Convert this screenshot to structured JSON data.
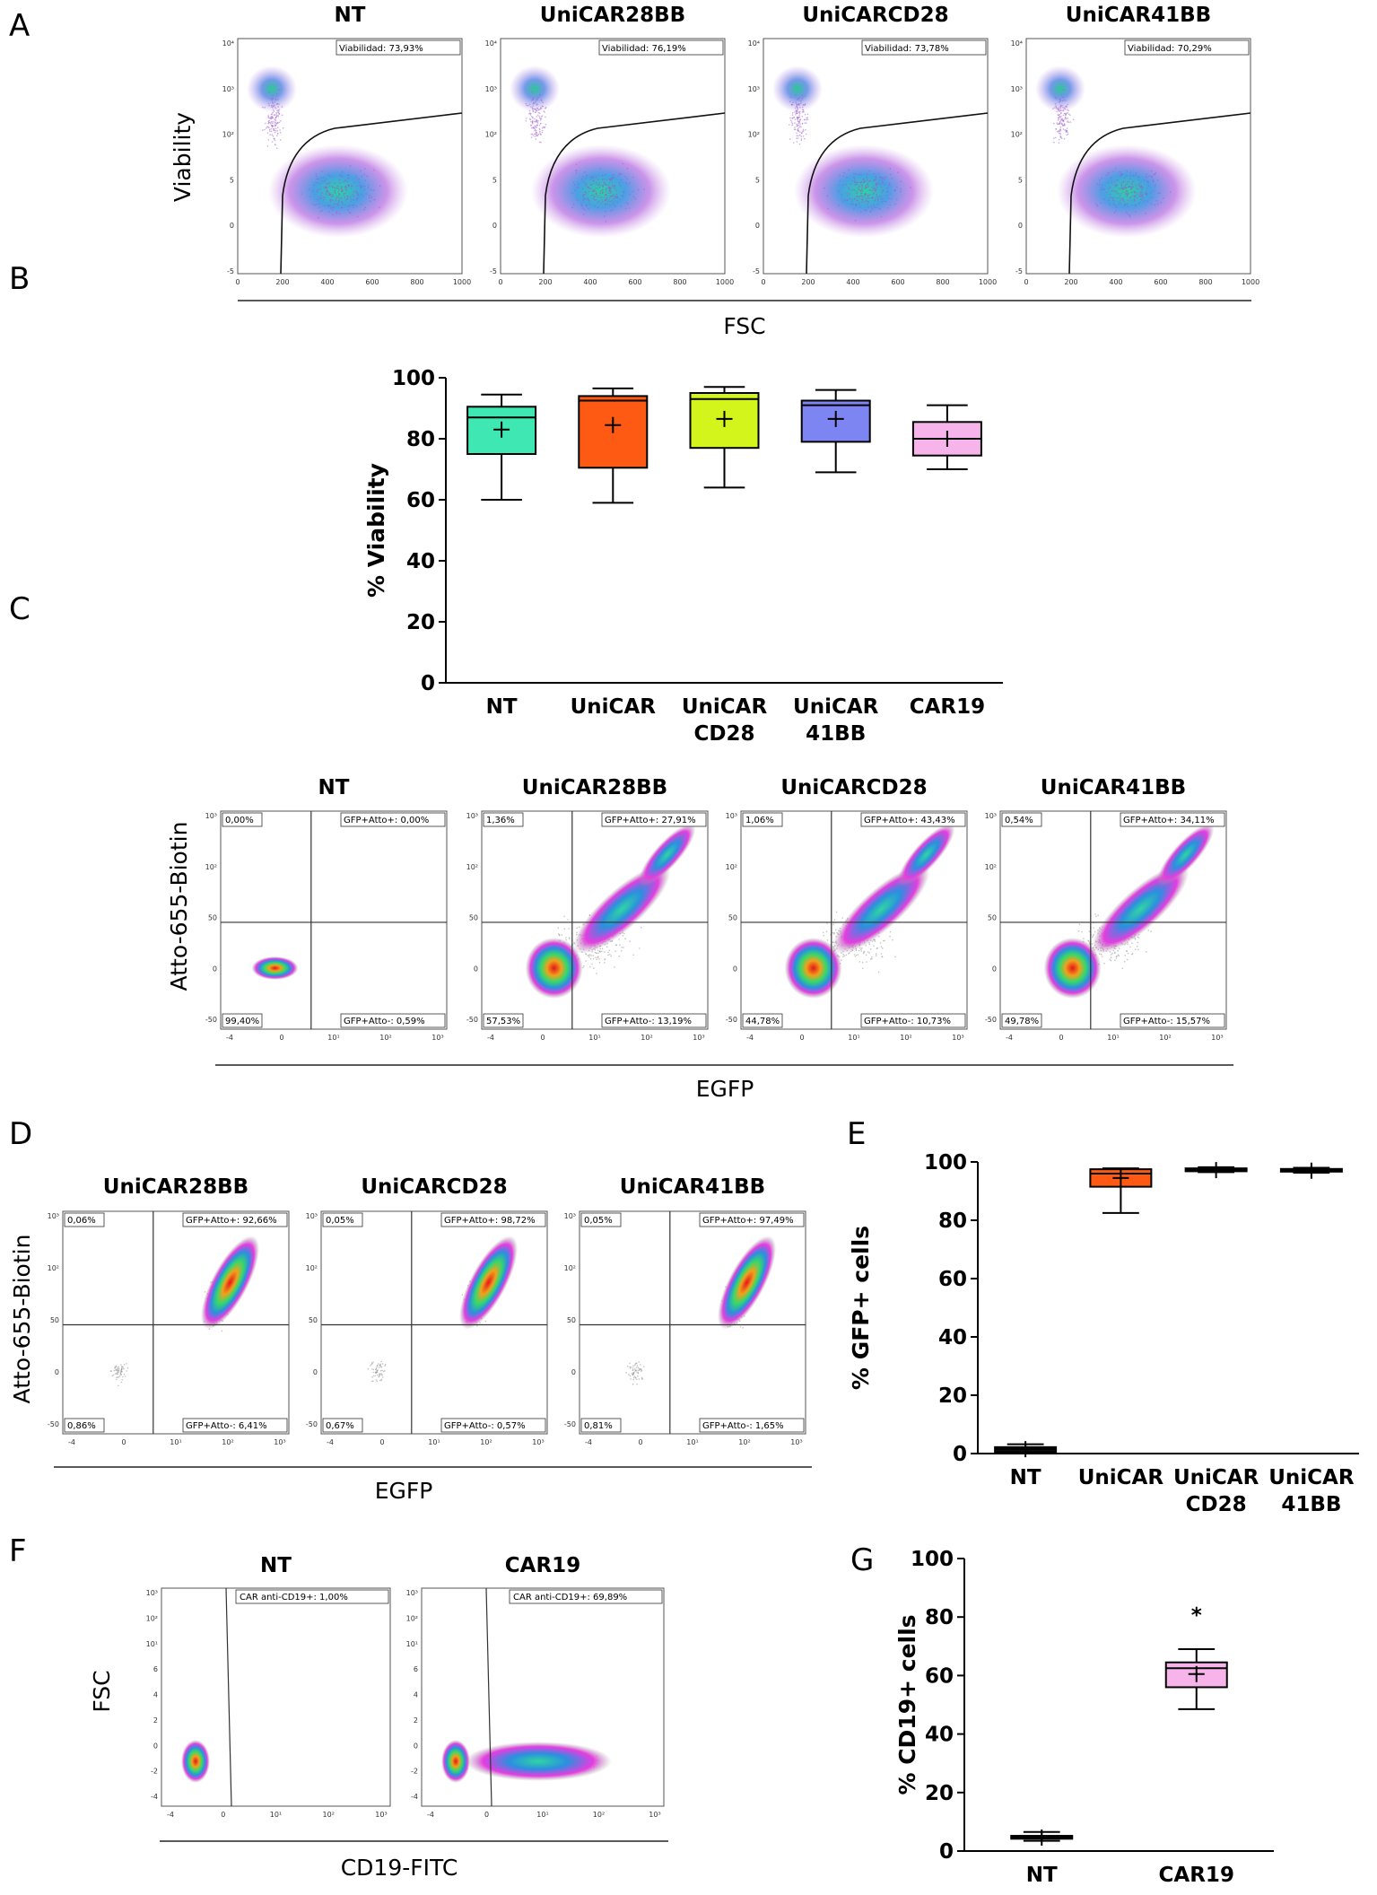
{
  "panel_labels": [
    "A",
    "B",
    "C",
    "D",
    "E",
    "F",
    "G"
  ],
  "panel_a": {
    "titles": [
      "NT",
      "UniCAR28BB",
      "UniCARCD28",
      "UniCAR41BB"
    ],
    "gate_labels": [
      "Viabilidad: 73,93%",
      "Viabilidad: 76,19%",
      "Viabilidad: 73,78%",
      "Viabilidad: 70,29%"
    ],
    "ylabel": "Viability",
    "xlabel": "FSC",
    "x_ticks": [
      "0",
      "200",
      "400",
      "600",
      "800",
      "1000"
    ],
    "y_ticks": [
      "10⁴",
      "10³",
      "10²",
      "5",
      "0",
      "-5"
    ]
  },
  "panel_c": {
    "titles": [
      "NT",
      "UniCAR28BB",
      "UniCARCD28",
      "UniCAR41BB"
    ],
    "ylabel": "Atto-655-Biotin",
    "xlabel": "EGFP",
    "quadrants": [
      {
        "ul": "0,00%",
        "ur": "GFP+Atto+: 0,00%",
        "ll": "99,40%",
        "lr": "GFP+Atto-: 0,59%"
      },
      {
        "ul": "1,36%",
        "ur": "GFP+Atto+: 27,91%",
        "ll": "57,53%",
        "lr": "GFP+Atto-: 13,19%"
      },
      {
        "ul": "1,06%",
        "ur": "GFP+Atto+: 43,43%",
        "ll": "44,78%",
        "lr": "GFP+Atto-: 10,73%"
      },
      {
        "ul": "0,54%",
        "ur": "GFP+Atto+: 34,11%",
        "ll": "49,78%",
        "lr": "GFP+Atto-: 15,57%"
      }
    ],
    "x_ticks": [
      "-4",
      "0",
      "10¹",
      "10²",
      "10³"
    ],
    "y_ticks": [
      "10³",
      "10²",
      "50",
      "0",
      "-50"
    ]
  },
  "panel_d": {
    "titles": [
      "UniCAR28BB",
      "UniCARCD28",
      "UniCAR41BB"
    ],
    "ylabel": "Atto-655-Biotin",
    "xlabel": "EGFP",
    "quadrants": [
      {
        "ul": "0,06%",
        "ur": "GFP+Atto+: 92,66%",
        "ll": "0,86%",
        "lr": "GFP+Atto-: 6,41%"
      },
      {
        "ul": "0,05%",
        "ur": "GFP+Atto+: 98,72%",
        "ll": "0,67%",
        "lr": "GFP+Atto-: 0,57%"
      },
      {
        "ul": "0,05%",
        "ur": "GFP+Atto+: 97,49%",
        "ll": "0,81%",
        "lr": "GFP+Atto-: 1,65%"
      }
    ],
    "x_ticks": [
      "-4",
      "0",
      "10¹",
      "10²",
      "10³"
    ],
    "y_ticks": [
      "10³",
      "10²",
      "50",
      "0",
      "-50"
    ]
  },
  "panel_f": {
    "titles": [
      "NT",
      "CAR19"
    ],
    "gate_labels": [
      "CAR anti-CD19+: 1,00%",
      "CAR anti-CD19+: 69,89%"
    ],
    "ylabel": "FSC",
    "xlabel": "CD19-FITC",
    "x_ticks": [
      "-4",
      "0",
      "10¹",
      "10²",
      "10³"
    ],
    "y_ticks": [
      "10³",
      "10²",
      "10¹",
      "6",
      "4",
      "2",
      "0",
      "-2",
      "-4"
    ]
  },
  "chart_data": [
    {
      "id": "B",
      "type": "box",
      "title": "",
      "xlabel": "",
      "ylabel": "% Viability",
      "ylim": [
        0,
        100
      ],
      "y_ticks": [
        0,
        20,
        40,
        60,
        80,
        100
      ],
      "categories": [
        "NT",
        "UniCAR",
        "UniCAR\nCD28",
        "UniCAR\n41BB",
        "CAR19"
      ],
      "boxes": [
        {
          "min": 60,
          "q1": 75,
          "median": 87,
          "q3": 90.5,
          "max": 94.5,
          "mean": 83,
          "color": "#3fe8b3"
        },
        {
          "min": 59,
          "q1": 70.5,
          "median": 92.5,
          "q3": 94,
          "max": 96.5,
          "mean": 84.5,
          "color": "#ff5a14"
        },
        {
          "min": 64,
          "q1": 77,
          "median": 93,
          "q3": 95,
          "max": 97,
          "mean": 86.5,
          "color": "#d3f51c"
        },
        {
          "min": 69,
          "q1": 79,
          "median": 91,
          "q3": 92.5,
          "max": 96,
          "mean": 86.5,
          "color": "#7d85f3"
        },
        {
          "min": 70,
          "q1": 74.5,
          "median": 80,
          "q3": 85.5,
          "max": 91,
          "mean": 80,
          "color": "#f6b4ea"
        }
      ]
    },
    {
      "id": "E",
      "type": "box",
      "title": "",
      "xlabel": "",
      "ylabel": "% GFP+ cells",
      "ylim": [
        0,
        100
      ],
      "y_ticks": [
        0,
        20,
        40,
        60,
        80,
        100
      ],
      "categories": [
        "NT",
        "UniCAR",
        "UniCAR\nCD28",
        "UniCAR\n41BB"
      ],
      "boxes": [
        {
          "min": 0,
          "q1": 0.5,
          "median": 1.5,
          "q3": 2.2,
          "max": 3.2,
          "mean": 1.5,
          "color": "#111111"
        },
        {
          "min": 82.5,
          "q1": 91.5,
          "median": 96,
          "q3": 97.5,
          "max": 97.8,
          "mean": 94.5,
          "color": "#ff5a14"
        },
        {
          "min": 96.5,
          "q1": 96.8,
          "median": 97.2,
          "q3": 97.8,
          "max": 98.2,
          "mean": 97.2,
          "color": "#111111"
        },
        {
          "min": 96.3,
          "q1": 96.7,
          "median": 97,
          "q3": 97.6,
          "max": 98,
          "mean": 97,
          "color": "#111111"
        }
      ]
    },
    {
      "id": "G",
      "type": "box",
      "title": "",
      "xlabel": "",
      "ylabel": "% CD19+ cells",
      "ylim": [
        0,
        100
      ],
      "y_ticks": [
        0,
        20,
        40,
        60,
        80,
        100
      ],
      "categories": [
        "NT",
        "CAR19"
      ],
      "annotation": "*",
      "boxes": [
        {
          "min": 3.5,
          "q1": 4.2,
          "median": 4.6,
          "q3": 5.2,
          "max": 6.5,
          "mean": 4.6,
          "color": "#111111"
        },
        {
          "min": 48.5,
          "q1": 56,
          "median": 62.5,
          "q3": 64.5,
          "max": 69,
          "mean": 60.5,
          "color": "#f6b4ea"
        }
      ]
    }
  ]
}
